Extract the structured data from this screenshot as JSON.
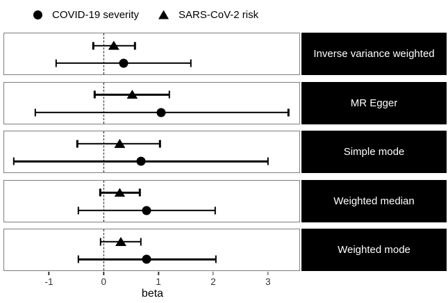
{
  "legend": {
    "items": [
      {
        "label": "COVID-19 severity",
        "marker": "circle"
      },
      {
        "label": "SARS-CoV-2 risk",
        "marker": "triangle"
      }
    ]
  },
  "chart_data": {
    "type": "scatter",
    "subtype": "forest-plot-with-error-bars",
    "title": "",
    "xlabel": "beta",
    "ylabel": "",
    "xlim": [
      -1.83,
      3.61
    ],
    "x_ticks": [
      -1,
      0,
      1,
      2,
      3
    ],
    "x_tick_labels": [
      "-1",
      "0",
      "1",
      "2",
      "3"
    ],
    "reference_line_x": 0,
    "grid": false,
    "legend_position": "top",
    "series_names": [
      "COVID-19 severity",
      "SARS-CoV-2 risk"
    ],
    "facet_labels": [
      "Inverse variance weighted",
      "MR Egger",
      "Simple mode",
      "Weighted median",
      "Weighted mode"
    ],
    "methods": [
      {
        "label": "Inverse variance weighted",
        "sars_cov2_risk": {
          "beta": 0.19,
          "ci_low": -0.19,
          "ci_high": 0.58
        },
        "covid19_severity": {
          "beta": 0.37,
          "ci_low": -0.87,
          "ci_high": 1.61
        }
      },
      {
        "label": "MR Egger",
        "sars_cov2_risk": {
          "beta": 0.53,
          "ci_low": -0.16,
          "ci_high": 1.21
        },
        "covid19_severity": {
          "beta": 1.06,
          "ci_low": -1.26,
          "ci_high": 3.41
        }
      },
      {
        "label": "Simple mode",
        "sars_cov2_risk": {
          "beta": 0.3,
          "ci_low": -0.48,
          "ci_high": 1.04
        },
        "covid19_severity": {
          "beta": 0.69,
          "ci_low": -1.65,
          "ci_high": 3.03
        }
      },
      {
        "label": "Weighted median",
        "sars_cov2_risk": {
          "beta": 0.3,
          "ci_low": -0.06,
          "ci_high": 0.67
        },
        "covid19_severity": {
          "beta": 0.79,
          "ci_low": -0.46,
          "ci_high": 2.06
        }
      },
      {
        "label": "Weighted mode",
        "sars_cov2_risk": {
          "beta": 0.32,
          "ci_low": -0.05,
          "ci_high": 0.69
        },
        "covid19_severity": {
          "beta": 0.8,
          "ci_low": -0.46,
          "ci_high": 2.07
        }
      }
    ]
  },
  "colors": {
    "marker": "#000000",
    "ci_line": "#000000",
    "strip_background": "#000000",
    "strip_text": "#ffffff",
    "panel_border": "#7d7d7d",
    "axis_text": "#333333",
    "reference_line": "#1a1a1a",
    "background": "#ffffff"
  }
}
